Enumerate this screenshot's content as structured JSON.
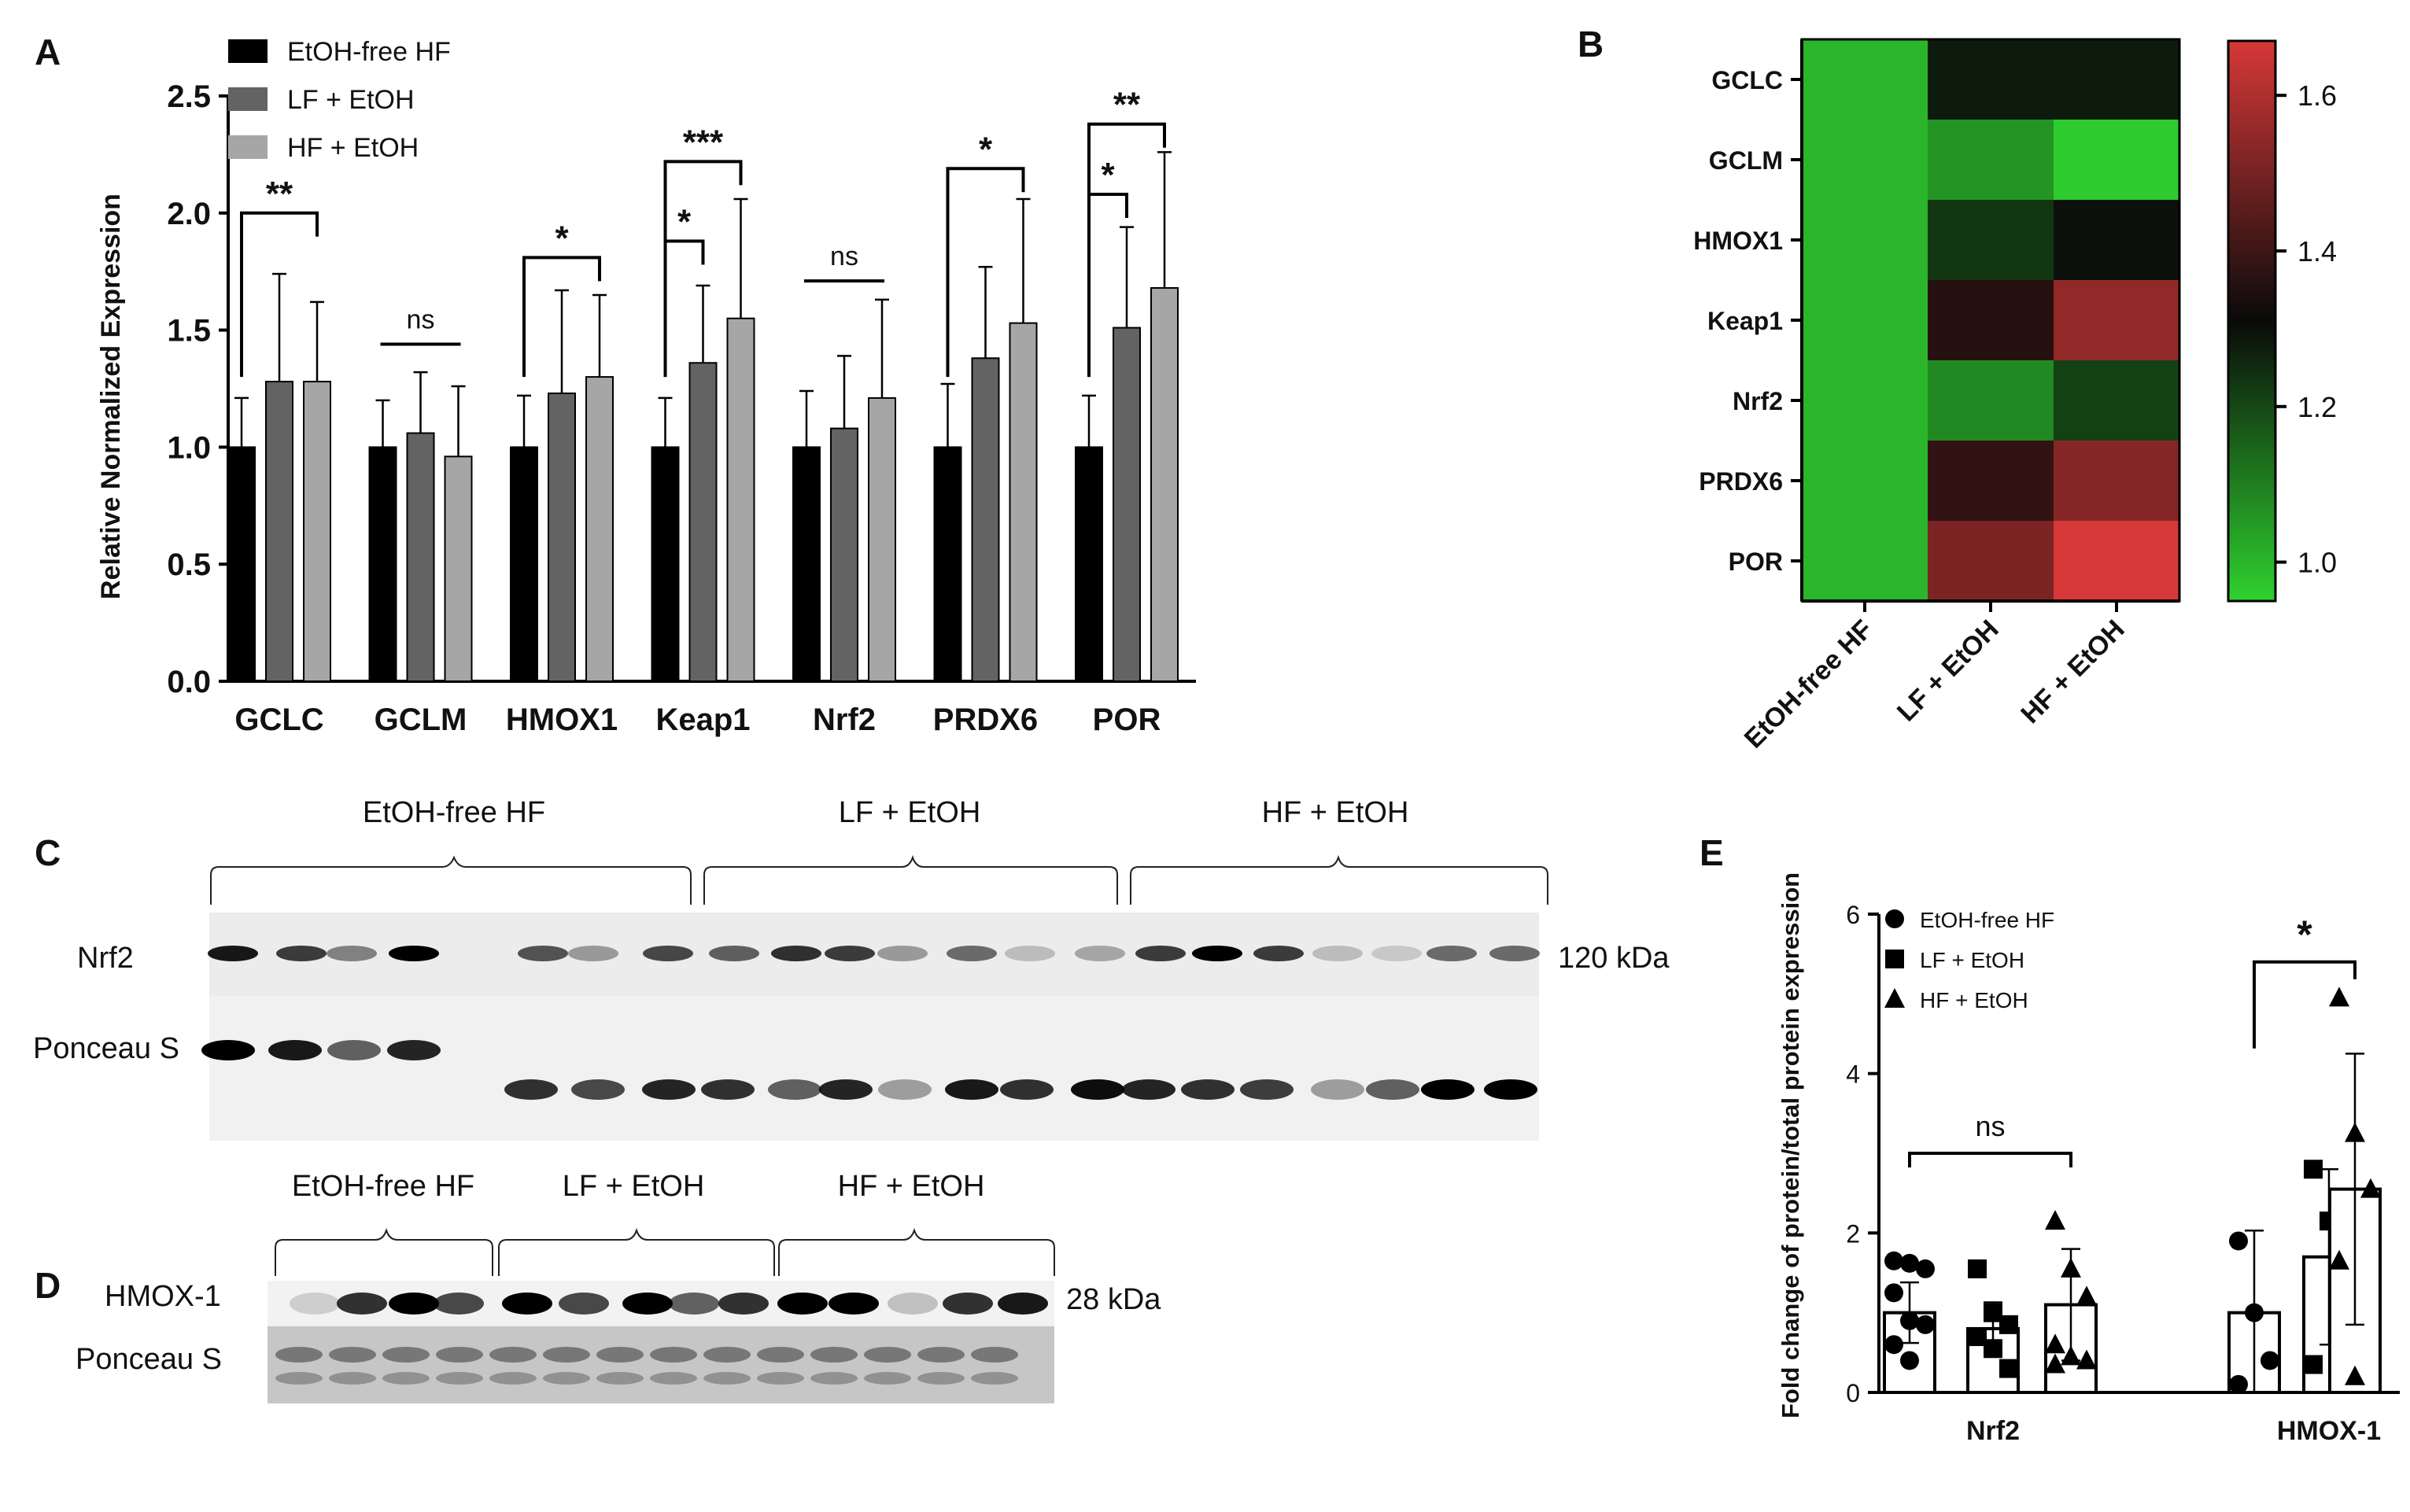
{
  "panel_letters": {
    "a": "A",
    "b": "B",
    "c": "C",
    "d": "D",
    "e": "E"
  },
  "chart_data": [
    {
      "panel": "A",
      "type": "bar",
      "title": "",
      "xlabel": "",
      "ylabel": "Relative Normalized Expression",
      "ylim": [
        0,
        2.5
      ],
      "yticks": [
        "0.0",
        "0.5",
        "1.0",
        "1.5",
        "2.0",
        "2.5"
      ],
      "categories": [
        "GCLC",
        "GCLM",
        "HMOX1",
        "Keap1",
        "Nrf2",
        "PRDX6",
        "POR"
      ],
      "series": [
        {
          "name": "EtOH-free HF",
          "color": "#000000",
          "values": [
            1.0,
            1.0,
            1.0,
            1.0,
            1.0,
            1.0,
            1.0
          ],
          "errors": [
            0.21,
            0.2,
            0.22,
            0.21,
            0.24,
            0.27,
            0.22
          ]
        },
        {
          "name": "LF + EtOH",
          "color": "#636363",
          "values": [
            1.28,
            1.06,
            1.23,
            1.36,
            1.08,
            1.38,
            1.51
          ],
          "errors": [
            0.46,
            0.26,
            0.44,
            0.33,
            0.31,
            0.39,
            0.43
          ]
        },
        {
          "name": "HF + EtOH",
          "color": "#a6a6a7",
          "values": [
            1.28,
            0.96,
            1.3,
            1.55,
            1.21,
            1.53,
            1.68
          ],
          "errors": [
            0.34,
            0.3,
            0.35,
            0.51,
            0.42,
            0.53,
            0.58
          ]
        }
      ],
      "legend": {
        "position": "top-left"
      },
      "significance": [
        {
          "group": 0,
          "from": 0,
          "to": 2,
          "level": 2.0,
          "label": "**"
        },
        {
          "group": 1,
          "from": -1,
          "to": -1,
          "level": 1.44,
          "label": "ns",
          "kind": "line"
        },
        {
          "group": 2,
          "from": 0,
          "to": 2,
          "level": 1.81,
          "label": "*"
        },
        {
          "group": 3,
          "from": 0,
          "to": 1,
          "level": 1.88,
          "label": "*"
        },
        {
          "group": 3,
          "from": 0,
          "to": 2,
          "level": 2.22,
          "label": "***"
        },
        {
          "group": 4,
          "from": -1,
          "to": -1,
          "level": 1.71,
          "label": "ns",
          "kind": "line"
        },
        {
          "group": 5,
          "from": 0,
          "to": 2,
          "level": 2.19,
          "label": "*"
        },
        {
          "group": 6,
          "from": 0,
          "to": 1,
          "level": 2.08,
          "label": "*"
        },
        {
          "group": 6,
          "from": 0,
          "to": 2,
          "level": 2.38,
          "label": "**"
        }
      ]
    },
    {
      "panel": "B",
      "type": "heatmap",
      "rows": [
        "GCLC",
        "GCLM",
        "HMOX1",
        "Keap1",
        "Nrf2",
        "PRDX6",
        "POR"
      ],
      "columns": [
        "EtOH-free HF",
        "LF + EtOH",
        "HF + EtOH"
      ],
      "values": [
        [
          1.0,
          1.28,
          1.28
        ],
        [
          1.0,
          1.06,
          0.96
        ],
        [
          1.0,
          1.23,
          1.3
        ],
        [
          1.0,
          1.36,
          1.55
        ],
        [
          1.0,
          1.08,
          1.21
        ],
        [
          1.0,
          1.38,
          1.53
        ],
        [
          1.0,
          1.51,
          1.68
        ]
      ],
      "colorbar_ticks": [
        "1.0",
        "1.2",
        "1.4",
        "1.6"
      ],
      "color_range": [
        0.95,
        1.67
      ],
      "colors": {
        "low": "#2fd12f",
        "mid": "#0a0a0a",
        "high": "#d63838"
      }
    },
    {
      "panel": "E",
      "type": "bar",
      "xlabel": "",
      "ylabel": "Fold change of protein/total protein expression",
      "ylim": [
        0,
        6
      ],
      "yticks": [
        "0",
        "2",
        "4",
        "6"
      ],
      "categories": [
        "Nrf2",
        "HMOX-1"
      ],
      "series": [
        {
          "name": "EtOH-free HF",
          "marker": "circle",
          "values": [
            1.0,
            1.0
          ],
          "errors": [
            0.38,
            1.03
          ],
          "points": [
            [
              1.65,
              1.62,
              1.55,
              1.25,
              0.9,
              0.85,
              0.6,
              0.4
            ],
            [
              1.9,
              1.0,
              0.4,
              0.1
            ]
          ]
        },
        {
          "name": "LF + EtOH",
          "marker": "square",
          "values": [
            0.8,
            1.7
          ],
          "errors": [
            0.33,
            1.1
          ],
          "points": [
            [
              1.55,
              1.0,
              0.85,
              0.7,
              0.55,
              0.3
            ],
            [
              2.8,
              2.15,
              1.35,
              0.35
            ]
          ]
        },
        {
          "name": "HF + EtOH",
          "marker": "triangle",
          "values": [
            1.1,
            2.55
          ],
          "errors": [
            0.7,
            1.7
          ],
          "points": [
            [
              2.15,
              1.55,
              1.2,
              0.6,
              0.45,
              0.4,
              0.35
            ],
            [
              4.95,
              3.25,
              2.55,
              1.65,
              0.2
            ]
          ]
        }
      ],
      "legend": {
        "position": "top-left"
      },
      "significance": [
        {
          "group": 0,
          "from": 0,
          "to": 2,
          "level": 3.0,
          "label": "ns"
        },
        {
          "group": 1,
          "from": 0,
          "to": 2,
          "level": 5.4,
          "label": "*"
        }
      ]
    }
  ],
  "blot_c": {
    "groups": [
      "EtOH-free HF",
      "LF + EtOH",
      "HF + EtOH"
    ],
    "rows": [
      "Nrf2",
      "Ponceau S"
    ],
    "marker": "120 kDa"
  },
  "blot_d": {
    "groups": [
      "EtOH-free HF",
      "LF + EtOH",
      "HF + EtOH"
    ],
    "rows": [
      "HMOX-1",
      "Ponceau S"
    ],
    "marker": "28 kDa"
  }
}
